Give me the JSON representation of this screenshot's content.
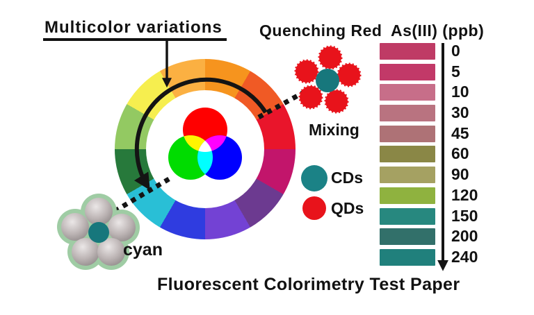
{
  "figure": {
    "title": "Multicolor variations",
    "caption": "Fluorescent Colorimetry Test Paper",
    "labels": {
      "quenching": "Quenching Red",
      "mixing": "Mixing",
      "cyan": "cyan",
      "scale_header": "As(III) (ppb)"
    },
    "legend": {
      "cds": {
        "label": "CDs",
        "color": "#1B8286"
      },
      "qds": {
        "label": "QDs",
        "color": "#E8131B"
      }
    },
    "wheel": {
      "segments": [
        {
          "name": "orange",
          "color": "#F6941E"
        },
        {
          "name": "red-orange",
          "color": "#F05A25"
        },
        {
          "name": "red",
          "color": "#E9152B"
        },
        {
          "name": "crimson",
          "color": "#C2156B"
        },
        {
          "name": "plum",
          "color": "#6C3A90"
        },
        {
          "name": "violet",
          "color": "#7342D4"
        },
        {
          "name": "blue",
          "color": "#2F3CE0"
        },
        {
          "name": "cyan",
          "color": "#29BFD6"
        },
        {
          "name": "dark-green",
          "color": "#27793B"
        },
        {
          "name": "light-green",
          "color": "#93C962"
        },
        {
          "name": "yellow",
          "color": "#F6EE4F"
        },
        {
          "name": "amber",
          "color": "#FBB042"
        }
      ],
      "rgb_circles": {
        "red": "#FF0000",
        "green": "#00DC00",
        "blue": "#0000FF",
        "yellow": "#FFF500",
        "magenta": "#FF00FF",
        "cyan": "#00FFFF",
        "center": "#FFFFFF"
      }
    },
    "clusters": {
      "qd_red": "#E8131B",
      "cd_teal": "#17777C",
      "gray_sphere": "#BDB5B5",
      "halo_green": "#9FCCA4"
    },
    "scale_rows": [
      {
        "value": "0",
        "color": "#BF3B65"
      },
      {
        "value": "5",
        "color": "#C23968"
      },
      {
        "value": "10",
        "color": "#C76E89"
      },
      {
        "value": "30",
        "color": "#B97380"
      },
      {
        "value": "45",
        "color": "#AE7276"
      },
      {
        "value": "60",
        "color": "#8A8746"
      },
      {
        "value": "90",
        "color": "#A5A162"
      },
      {
        "value": "120",
        "color": "#8FB23F"
      },
      {
        "value": "150",
        "color": "#27887F"
      },
      {
        "value": "200",
        "color": "#32706A"
      },
      {
        "value": "240",
        "color": "#20807C"
      }
    ],
    "arrow_color": "#141414"
  },
  "chart_data": {
    "type": "table",
    "title": "As(III) colorimetric test paper scale",
    "columns": [
      "As(III) (ppb)",
      "strip_color"
    ],
    "rows": [
      [
        0,
        "#BF3B65"
      ],
      [
        5,
        "#C23968"
      ],
      [
        10,
        "#C76E89"
      ],
      [
        30,
        "#B97380"
      ],
      [
        45,
        "#AE7276"
      ],
      [
        60,
        "#8A8746"
      ],
      [
        90,
        "#A5A162"
      ],
      [
        120,
        "#8FB23F"
      ],
      [
        150,
        "#27887F"
      ],
      [
        200,
        "#32706A"
      ],
      [
        240,
        "#20807C"
      ]
    ]
  }
}
